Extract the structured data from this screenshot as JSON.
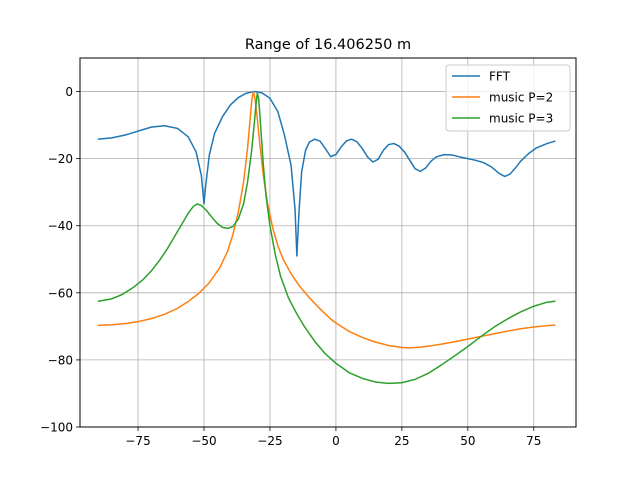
{
  "chart_data": {
    "type": "line",
    "title": "Range of 16.406250 m",
    "xlabel": "",
    "ylabel": "",
    "xlim": [
      -97,
      91
    ],
    "ylim": [
      -100,
      10
    ],
    "grid": true,
    "legend_position": "top-right",
    "x_ticks": [
      -75,
      -50,
      -25,
      0,
      25,
      50,
      75
    ],
    "x_tick_labels": [
      "−75",
      "−50",
      "−25",
      "0",
      "25",
      "50",
      "75"
    ],
    "y_ticks": [
      0,
      -20,
      -40,
      -60,
      -80,
      -100
    ],
    "y_tick_labels": [
      "0",
      "−20",
      "−40",
      "−60",
      "−80",
      "−100"
    ],
    "series": [
      {
        "name": "FFT",
        "color": "#1f77b4",
        "points": [
          [
            -90,
            -14.2
          ],
          [
            -85,
            -13.8
          ],
          [
            -80,
            -13
          ],
          [
            -75,
            -11.8
          ],
          [
            -70,
            -10.6
          ],
          [
            -65,
            -10.2
          ],
          [
            -60,
            -11
          ],
          [
            -56,
            -13.5
          ],
          [
            -53,
            -18
          ],
          [
            -51,
            -25
          ],
          [
            -50,
            -33.5
          ],
          [
            -49.5,
            -29
          ],
          [
            -48,
            -19
          ],
          [
            -46,
            -12.5
          ],
          [
            -43,
            -7.5
          ],
          [
            -40,
            -4
          ],
          [
            -37,
            -1.8
          ],
          [
            -34,
            -0.5
          ],
          [
            -31,
            0
          ],
          [
            -28,
            -0.4
          ],
          [
            -25,
            -2
          ],
          [
            -22,
            -6
          ],
          [
            -19.5,
            -13
          ],
          [
            -17,
            -22
          ],
          [
            -15.5,
            -35
          ],
          [
            -14.8,
            -49
          ],
          [
            -14,
            -36
          ],
          [
            -13,
            -24
          ],
          [
            -11.5,
            -17.5
          ],
          [
            -10,
            -15
          ],
          [
            -8,
            -14.2
          ],
          [
            -6,
            -14.8
          ],
          [
            -4,
            -17
          ],
          [
            -2,
            -19.4
          ],
          [
            0,
            -18.8
          ],
          [
            2,
            -16.5
          ],
          [
            4,
            -14.7
          ],
          [
            6,
            -14.2
          ],
          [
            8,
            -15
          ],
          [
            10,
            -17
          ],
          [
            12,
            -19.5
          ],
          [
            14,
            -21
          ],
          [
            16,
            -20.2
          ],
          [
            18,
            -17.5
          ],
          [
            20,
            -15.8
          ],
          [
            22,
            -15.5
          ],
          [
            24,
            -16.3
          ],
          [
            26,
            -18
          ],
          [
            28,
            -20.5
          ],
          [
            30,
            -23
          ],
          [
            32,
            -23.8
          ],
          [
            34,
            -22.8
          ],
          [
            36,
            -20.8
          ],
          [
            38,
            -19.5
          ],
          [
            41,
            -18.8
          ],
          [
            44,
            -18.9
          ],
          [
            47,
            -19.5
          ],
          [
            50,
            -20
          ],
          [
            53,
            -20.5
          ],
          [
            56,
            -21.2
          ],
          [
            59,
            -22.5
          ],
          [
            62,
            -24.5
          ],
          [
            64,
            -25.3
          ],
          [
            66,
            -24.6
          ],
          [
            68,
            -22.8
          ],
          [
            70,
            -20.8
          ],
          [
            73,
            -18.5
          ],
          [
            76,
            -16.8
          ],
          [
            80,
            -15.5
          ],
          [
            83,
            -14.8
          ]
        ]
      },
      {
        "name": "music P=2",
        "color": "#ff7f0e",
        "points": [
          [
            -90,
            -69.7
          ],
          [
            -85,
            -69.5
          ],
          [
            -80,
            -69.2
          ],
          [
            -75,
            -68.6
          ],
          [
            -70,
            -67.7
          ],
          [
            -65,
            -66.4
          ],
          [
            -60,
            -64.6
          ],
          [
            -56,
            -62.6
          ],
          [
            -52,
            -60.2
          ],
          [
            -48,
            -57
          ],
          [
            -44,
            -52.5
          ],
          [
            -41,
            -47.5
          ],
          [
            -39,
            -42.5
          ],
          [
            -37,
            -36
          ],
          [
            -35,
            -27
          ],
          [
            -33.5,
            -17
          ],
          [
            -32.5,
            -8
          ],
          [
            -31.8,
            -2
          ],
          [
            -31.3,
            0
          ],
          [
            -30.6,
            -2.5
          ],
          [
            -29.8,
            -8
          ],
          [
            -28.8,
            -16
          ],
          [
            -27.5,
            -25
          ],
          [
            -26,
            -33
          ],
          [
            -24,
            -40.5
          ],
          [
            -22,
            -46
          ],
          [
            -20,
            -50
          ],
          [
            -17,
            -54.3
          ],
          [
            -14,
            -57.8
          ],
          [
            -10,
            -61.5
          ],
          [
            -6,
            -64.8
          ],
          [
            -2,
            -67.8
          ],
          [
            0,
            -69
          ],
          [
            5,
            -71.5
          ],
          [
            10,
            -73.3
          ],
          [
            15,
            -74.7
          ],
          [
            20,
            -75.7
          ],
          [
            25,
            -76.3
          ],
          [
            28,
            -76.4
          ],
          [
            32,
            -76.2
          ],
          [
            36,
            -75.8
          ],
          [
            40,
            -75.3
          ],
          [
            45,
            -74.6
          ],
          [
            50,
            -73.8
          ],
          [
            55,
            -73
          ],
          [
            60,
            -72.2
          ],
          [
            65,
            -71.4
          ],
          [
            70,
            -70.7
          ],
          [
            75,
            -70.2
          ],
          [
            80,
            -69.8
          ],
          [
            83,
            -69.6
          ]
        ]
      },
      {
        "name": "music P=3",
        "color": "#2ca02c",
        "points": [
          [
            -90,
            -62.5
          ],
          [
            -85,
            -61.8
          ],
          [
            -81,
            -60.5
          ],
          [
            -77,
            -58.5
          ],
          [
            -73,
            -56
          ],
          [
            -70,
            -53.5
          ],
          [
            -67,
            -50.5
          ],
          [
            -64,
            -47
          ],
          [
            -61,
            -43
          ],
          [
            -58,
            -39
          ],
          [
            -56,
            -36.3
          ],
          [
            -54,
            -34.2
          ],
          [
            -52.5,
            -33.5
          ],
          [
            -51,
            -34
          ],
          [
            -49,
            -35.5
          ],
          [
            -47,
            -37.5
          ],
          [
            -45,
            -39.3
          ],
          [
            -43,
            -40.5
          ],
          [
            -41,
            -40.8
          ],
          [
            -39,
            -40.2
          ],
          [
            -37,
            -38
          ],
          [
            -35,
            -33.5
          ],
          [
            -33.5,
            -27
          ],
          [
            -32,
            -18
          ],
          [
            -31,
            -10
          ],
          [
            -30.3,
            -4
          ],
          [
            -29.8,
            -0.5
          ],
          [
            -29.3,
            -2
          ],
          [
            -28.8,
            -7
          ],
          [
            -28.2,
            -14
          ],
          [
            -27.5,
            -22
          ],
          [
            -26.5,
            -31
          ],
          [
            -25,
            -40
          ],
          [
            -23,
            -48.5
          ],
          [
            -21,
            -55
          ],
          [
            -18,
            -61.5
          ],
          [
            -15,
            -66
          ],
          [
            -12,
            -70
          ],
          [
            -8,
            -74.5
          ],
          [
            -4,
            -78.2
          ],
          [
            0,
            -81
          ],
          [
            5,
            -83.8
          ],
          [
            10,
            -85.5
          ],
          [
            15,
            -86.6
          ],
          [
            20,
            -87
          ],
          [
            25,
            -86.8
          ],
          [
            30,
            -85.8
          ],
          [
            35,
            -84
          ],
          [
            40,
            -81.5
          ],
          [
            45,
            -78.8
          ],
          [
            50,
            -76
          ],
          [
            55,
            -73
          ],
          [
            60,
            -70.2
          ],
          [
            65,
            -67.8
          ],
          [
            70,
            -65.7
          ],
          [
            75,
            -64
          ],
          [
            80,
            -62.8
          ],
          [
            83,
            -62.5
          ]
        ]
      }
    ]
  }
}
